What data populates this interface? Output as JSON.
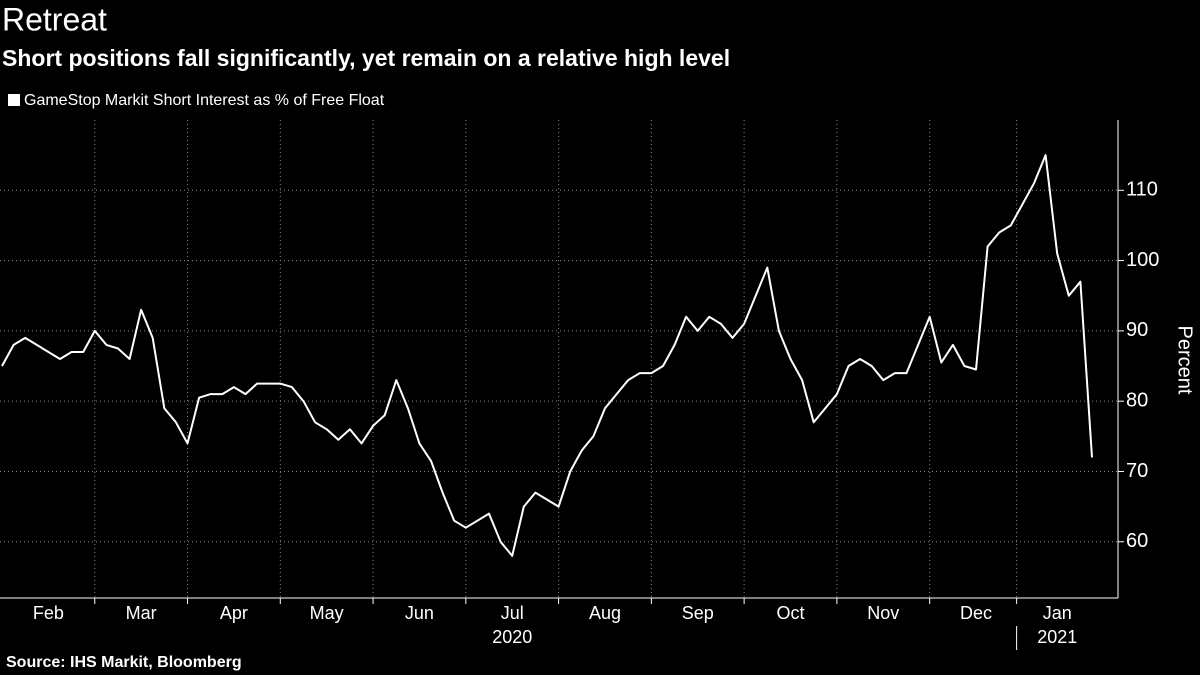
{
  "chart_data": {
    "type": "line",
    "title": "Retreat",
    "subtitle": "Short positions fall significantly, yet remain on a relative high level",
    "y_label": "Percent",
    "source": "Source: IHS Markit, Bloomberg",
    "categories": [
      null,
      null,
      null,
      null,
      "Feb",
      null,
      null,
      null,
      null,
      null,
      null,
      null,
      "Mar",
      null,
      null,
      null,
      null,
      null,
      null,
      null,
      "Apr",
      null,
      null,
      null,
      null,
      null,
      null,
      null,
      "May",
      null,
      null,
      null,
      null,
      null,
      null,
      null,
      "Jun",
      null,
      null,
      null,
      null,
      null,
      null,
      null,
      "Jul",
      null,
      null,
      null,
      null,
      null,
      null,
      null,
      "Aug",
      null,
      null,
      null,
      null,
      null,
      null,
      null,
      "Sep",
      null,
      null,
      null,
      null,
      null,
      null,
      null,
      "Oct",
      null,
      null,
      null,
      null,
      null,
      null,
      null,
      "Nov",
      null,
      null,
      null,
      null,
      null,
      null,
      null,
      "Dec",
      null,
      null,
      null,
      null,
      null,
      null,
      "Jan",
      null,
      null,
      null
    ],
    "year_categories": [
      null,
      null,
      null,
      null,
      null,
      null,
      null,
      null,
      null,
      null,
      null,
      null,
      null,
      null,
      null,
      null,
      null,
      null,
      null,
      null,
      null,
      null,
      null,
      null,
      null,
      null,
      null,
      null,
      null,
      null,
      null,
      null,
      null,
      null,
      null,
      null,
      null,
      null,
      null,
      null,
      null,
      null,
      null,
      null,
      "2020",
      null,
      null,
      null,
      null,
      null,
      null,
      null,
      null,
      null,
      null,
      null,
      null,
      null,
      null,
      null,
      null,
      null,
      null,
      null,
      null,
      null,
      null,
      null,
      null,
      null,
      null,
      null,
      null,
      null,
      null,
      null,
      null,
      null,
      null,
      null,
      null,
      null,
      null,
      null,
      null,
      null,
      null,
      null,
      null,
      null,
      null,
      "2021",
      null,
      null,
      null
    ],
    "series": [
      {
        "name": "GameStop Markit Short Interest as % of Free Float",
        "color": "#ffffff",
        "values": [
          85,
          88,
          89,
          88,
          87,
          86,
          87,
          87,
          90,
          88,
          87.5,
          86,
          93,
          89,
          79,
          77,
          74,
          80.5,
          81,
          81,
          82,
          81,
          82.5,
          82.5,
          82.5,
          82,
          80,
          77,
          76,
          74.5,
          76,
          74,
          76.5,
          78,
          83,
          79,
          74,
          71.5,
          67,
          63,
          62,
          63,
          64,
          60,
          58,
          65,
          67,
          66,
          65,
          70,
          73,
          75,
          79,
          81,
          83,
          84,
          84,
          85,
          88,
          92,
          90,
          92,
          91,
          89,
          91,
          95,
          99,
          90,
          86,
          83,
          77,
          79,
          81,
          85,
          86,
          85,
          83,
          84,
          84,
          88,
          92,
          85.5,
          88,
          85,
          84.5,
          102,
          104,
          105,
          108,
          111,
          115,
          101,
          95,
          97,
          72
        ]
      }
    ],
    "ylim": [
      52,
      120
    ],
    "yticks": [
      60,
      70,
      80,
      90,
      100,
      110
    ],
    "grid": true
  }
}
